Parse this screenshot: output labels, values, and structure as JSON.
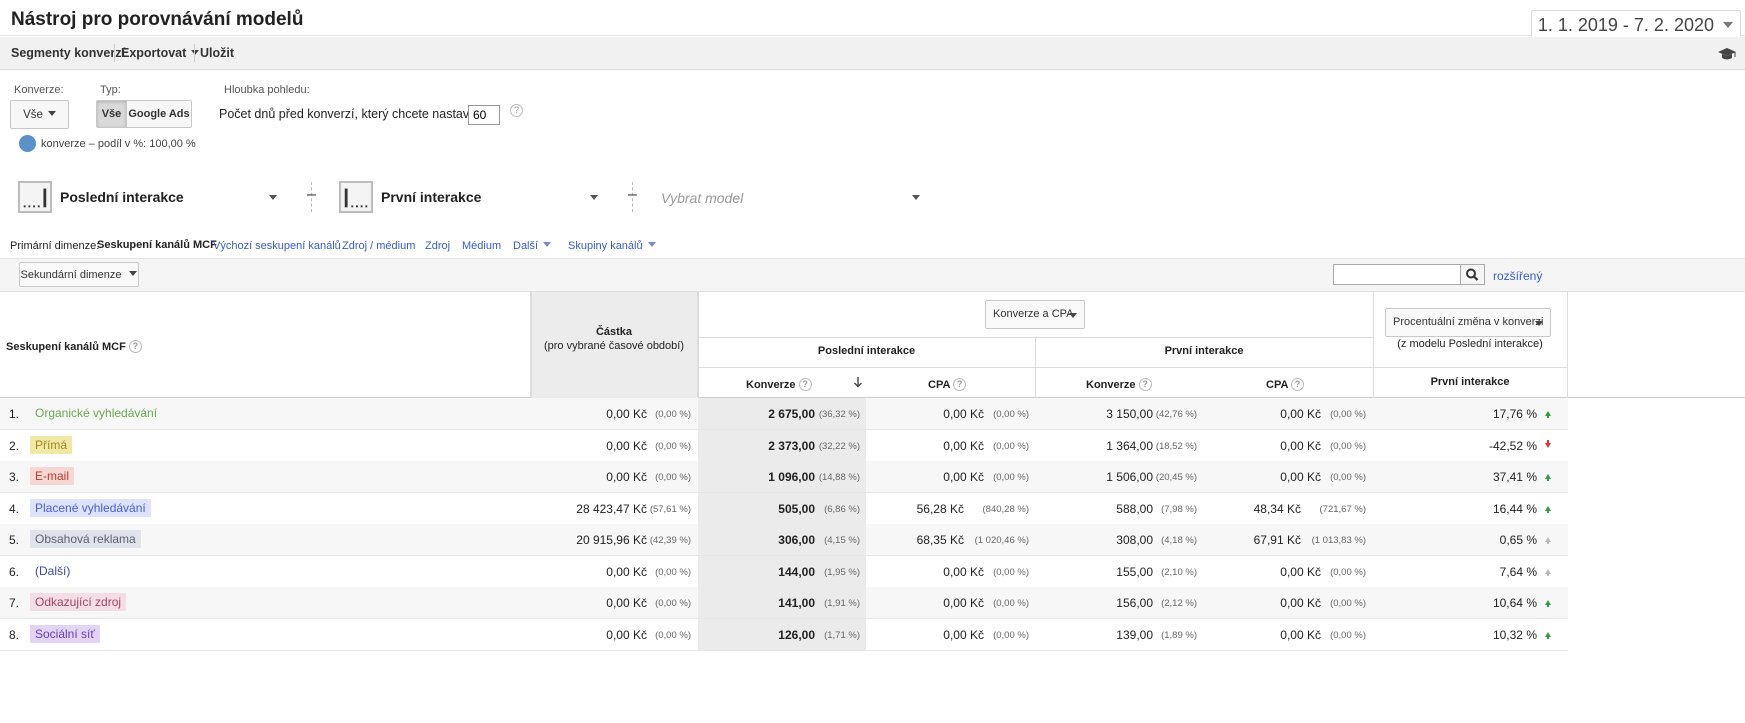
{
  "header": {
    "title": "Nástroj pro porovnávání modelů",
    "date_range": "1. 1. 2019 - 7. 2. 2020"
  },
  "toolbar": {
    "segments": "Segmenty konverzí",
    "export": "Exportovat",
    "save": "Uložit",
    "icon": "graduation-cap-icon"
  },
  "controls": {
    "conversion_label": "Konverze:",
    "conversion_value": "Vše",
    "type_label": "Typ:",
    "type_options": [
      "Vše",
      "Google Ads"
    ],
    "type_selected": "Vše",
    "lookback_label": "Hloubka pohledu:",
    "lookback_text": "Počet dnů před konverzí, který chcete nastavit:",
    "lookback_days": "60",
    "help": "?",
    "legend_text": "konverze – podíl v %: 100,00 %",
    "legend_color": "#5b90c9"
  },
  "models": {
    "model1": "Poslední interakce",
    "model2": "První interakce",
    "model3_placeholder": "Vybrat model",
    "minus": "–"
  },
  "dimensions": {
    "label": "Primární dimenze:",
    "active": "Seskupení kanálů MCF",
    "links": [
      "Výchozí seskupení kanálů",
      "Zdroj / médium",
      "Zdroj",
      "Médium",
      "Další",
      "Skupiny kanálů"
    ]
  },
  "secondary": {
    "button": "Sekundární dimenze",
    "advanced": "rozšířený"
  },
  "table": {
    "dim_header": "Seskupení kanálů MCF",
    "amount_header": "Částka",
    "amount_sub": "(pro vybrané časové období)",
    "metric_select": "Konverze a CPA",
    "group1": "Poslední interakce",
    "group2": "První interakce",
    "conv": "Konverze",
    "cpa": "CPA",
    "change_select": "Procentuální změna v konverzi",
    "change_sub": "(z modelu Poslední interakce)",
    "change_col": "První interakce",
    "rows": [
      {
        "n": "1.",
        "channel": "Organické vyhledávání",
        "color": "#6aa84f",
        "bg": "transparent",
        "amount": "0,00 Kč",
        "amount_pct": "(0,00 %)",
        "conv1": "2 675,00",
        "conv1_pct": "(36,32 %)",
        "cpa1": "0,00 Kč",
        "cpa1_pct": "(0,00 %)",
        "conv2": "3 150,00",
        "conv2_pct": "(42,76 %)",
        "cpa2": "0,00 Kč",
        "cpa2_pct": "(0,00 %)",
        "change": "17,76 %",
        "dir": "up"
      },
      {
        "n": "2.",
        "channel": "Přímá",
        "color": "#a08a1e",
        "bg": "#f1e8a6",
        "amount": "0,00 Kč",
        "amount_pct": "(0,00 %)",
        "conv1": "2 373,00",
        "conv1_pct": "(32,22 %)",
        "cpa1": "0,00 Kč",
        "cpa1_pct": "(0,00 %)",
        "conv2": "1 364,00",
        "conv2_pct": "(18,52 %)",
        "cpa2": "0,00 Kč",
        "cpa2_pct": "(0,00 %)",
        "change": "-42,52 %",
        "dir": "down"
      },
      {
        "n": "3.",
        "channel": "E-mail",
        "color": "#c0392b",
        "bg": "#f7d7d3",
        "amount": "0,00 Kč",
        "amount_pct": "(0,00 %)",
        "conv1": "1 096,00",
        "conv1_pct": "(14,88 %)",
        "cpa1": "0,00 Kč",
        "cpa1_pct": "(0,00 %)",
        "conv2": "1 506,00",
        "conv2_pct": "(20,45 %)",
        "cpa2": "0,00 Kč",
        "cpa2_pct": "(0,00 %)",
        "change": "37,41 %",
        "dir": "up"
      },
      {
        "n": "4.",
        "channel": "Placené vyhledávání",
        "color": "#4a5fcf",
        "bg": "#dde3fa",
        "amount": "28 423,47 Kč",
        "amount_pct": "(57,61 %)",
        "conv1": "505,00",
        "conv1_pct": "(6,86 %)",
        "cpa1": "56,28 Kč",
        "cpa1_pct": "(840,28 %)",
        "conv2": "588,00",
        "conv2_pct": "(7,98 %)",
        "cpa2": "48,34 Kč",
        "cpa2_pct": "(721,67 %)",
        "change": "16,44 %",
        "dir": "up"
      },
      {
        "n": "5.",
        "channel": "Obsahová reklama",
        "color": "#5d6270",
        "bg": "#e0e3ec",
        "amount": "20 915,96 Kč",
        "amount_pct": "(42,39 %)",
        "conv1": "306,00",
        "conv1_pct": "(4,15 %)",
        "cpa1": "68,35 Kč",
        "cpa1_pct": "(1 020,46 %)",
        "conv2": "308,00",
        "conv2_pct": "(4,18 %)",
        "cpa2": "67,91 Kč",
        "cpa2_pct": "(1 013,83 %)",
        "change": "0,65 %",
        "dir": "up-grey"
      },
      {
        "n": "6.",
        "channel": "(Další)",
        "color": "#3a4a9c",
        "bg": "transparent",
        "amount": "0,00 Kč",
        "amount_pct": "(0,00 %)",
        "conv1": "144,00",
        "conv1_pct": "(1,95 %)",
        "cpa1": "0,00 Kč",
        "cpa1_pct": "(0,00 %)",
        "conv2": "155,00",
        "conv2_pct": "(2,10 %)",
        "cpa2": "0,00 Kč",
        "cpa2_pct": "(0,00 %)",
        "change": "7,64 %",
        "dir": "up-grey"
      },
      {
        "n": "7.",
        "channel": "Odkazující zdroj",
        "color": "#a0476a",
        "bg": "#f5dde6",
        "amount": "0,00 Kč",
        "amount_pct": "(0,00 %)",
        "conv1": "141,00",
        "conv1_pct": "(1,91 %)",
        "cpa1": "0,00 Kč",
        "cpa1_pct": "(0,00 %)",
        "conv2": "156,00",
        "conv2_pct": "(2,12 %)",
        "cpa2": "0,00 Kč",
        "cpa2_pct": "(0,00 %)",
        "change": "10,64 %",
        "dir": "up"
      },
      {
        "n": "8.",
        "channel": "Sociální síť",
        "color": "#6a3fb0",
        "bg": "#e3d4f6",
        "amount": "0,00 Kč",
        "amount_pct": "(0,00 %)",
        "conv1": "126,00",
        "conv1_pct": "(1,71 %)",
        "cpa1": "0,00 Kč",
        "cpa1_pct": "(0,00 %)",
        "conv2": "139,00",
        "conv2_pct": "(1,89 %)",
        "cpa2": "0,00 Kč",
        "cpa2_pct": "(0,00 %)",
        "change": "10,32 %",
        "dir": "up"
      }
    ]
  }
}
